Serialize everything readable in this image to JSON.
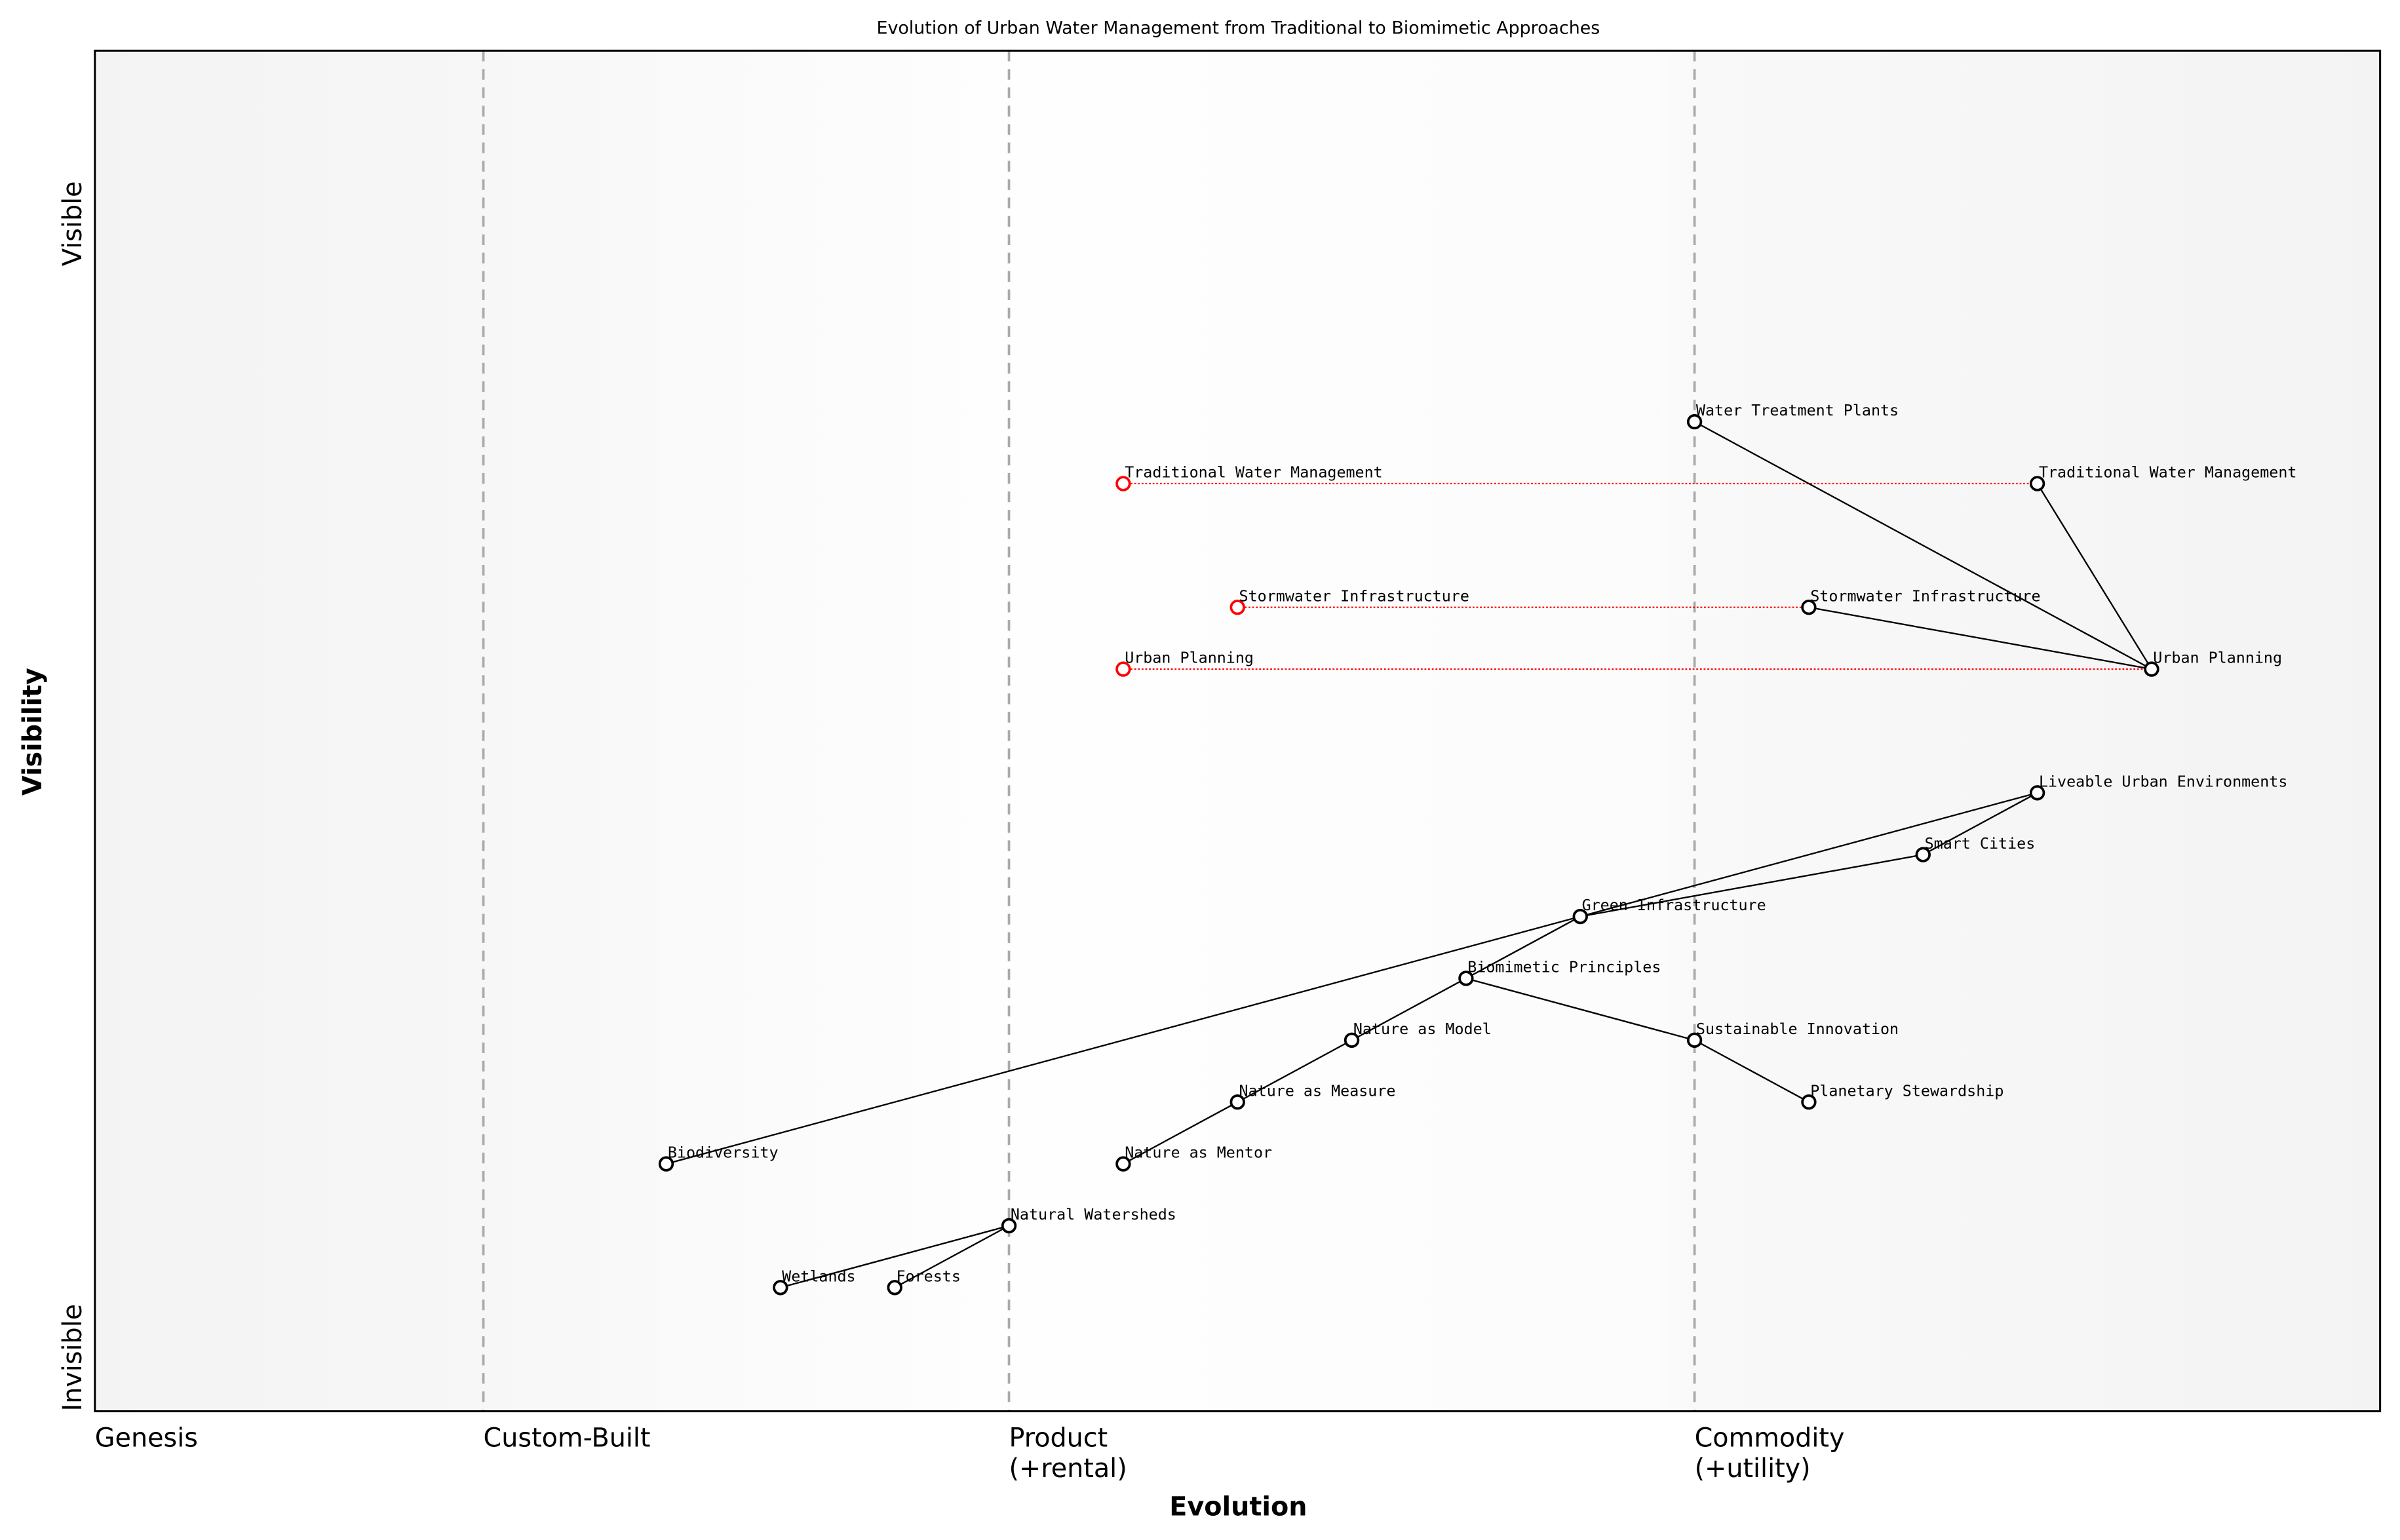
{
  "chart_data": {
    "type": "scatter",
    "subtype": "wardley-map",
    "title": "Evolution of Urban Water Management from Traditional to Biomimetic Approaches",
    "xlabel": "Evolution",
    "ylabel": "Visibility",
    "xlim": [
      0,
      1
    ],
    "ylim": [
      0,
      1.1
    ],
    "grid": false,
    "x_stages": [
      {
        "label": "Genesis",
        "at": 0
      },
      {
        "label": "Custom-Built",
        "at": 0.17
      },
      {
        "label": "Product\n(+rental)",
        "at": 0.4
      },
      {
        "label": "Commodity\n(+utility)",
        "at": 0.7
      }
    ],
    "y_labels": {
      "top": "Visible",
      "bottom": "Invisible"
    },
    "colors": {
      "node": "#000000",
      "old_node": "#ff0000",
      "evolve_line": "#ff0000",
      "stage_line": "#aaaaaa"
    },
    "components": [
      {
        "name": "Water Treatment Plants",
        "evolution": 0.7,
        "visibility": 0.8
      },
      {
        "name": "Traditional Water Management",
        "evolution": 0.85,
        "visibility": 0.75
      },
      {
        "name": "Stormwater Infrastructure",
        "evolution": 0.75,
        "visibility": 0.65
      },
      {
        "name": "Urban Planning",
        "evolution": 0.9,
        "visibility": 0.6
      },
      {
        "name": "Liveable Urban Environments",
        "evolution": 0.85,
        "visibility": 0.5
      },
      {
        "name": "Smart Cities",
        "evolution": 0.8,
        "visibility": 0.45
      },
      {
        "name": "Green Infrastructure",
        "evolution": 0.65,
        "visibility": 0.4
      },
      {
        "name": "Biomimetic Principles",
        "evolution": 0.6,
        "visibility": 0.35
      },
      {
        "name": "Nature as Model",
        "evolution": 0.55,
        "visibility": 0.3
      },
      {
        "name": "Sustainable Innovation",
        "evolution": 0.7,
        "visibility": 0.3
      },
      {
        "name": "Nature as Measure",
        "evolution": 0.5,
        "visibility": 0.25
      },
      {
        "name": "Planetary Stewardship",
        "evolution": 0.75,
        "visibility": 0.25
      },
      {
        "name": "Nature as Mentor",
        "evolution": 0.45,
        "visibility": 0.2
      },
      {
        "name": "Biodiversity",
        "evolution": 0.25,
        "visibility": 0.2
      },
      {
        "name": "Natural Watersheds",
        "evolution": 0.4,
        "visibility": 0.15
      },
      {
        "name": "Wetlands",
        "evolution": 0.3,
        "visibility": 0.1
      },
      {
        "name": "Forests",
        "evolution": 0.35,
        "visibility": 0.1
      }
    ],
    "links": [
      [
        "Water Treatment Plants",
        "Urban Planning"
      ],
      [
        "Traditional Water Management",
        "Urban Planning"
      ],
      [
        "Stormwater Infrastructure",
        "Urban Planning"
      ],
      [
        "Liveable Urban Environments",
        "Smart Cities"
      ],
      [
        "Liveable Urban Environments",
        "Biodiversity"
      ],
      [
        "Smart Cities",
        "Green Infrastructure"
      ],
      [
        "Green Infrastructure",
        "Biomimetic Principles"
      ],
      [
        "Biomimetic Principles",
        "Nature as Model"
      ],
      [
        "Nature as Model",
        "Nature as Measure"
      ],
      [
        "Nature as Measure",
        "Nature as Mentor"
      ],
      [
        "Biomimetic Principles",
        "Sustainable Innovation"
      ],
      [
        "Sustainable Innovation",
        "Planetary Stewardship"
      ],
      [
        "Natural Watersheds",
        "Wetlands"
      ],
      [
        "Natural Watersheds",
        "Forests"
      ]
    ],
    "evolutions": [
      {
        "name": "Traditional Water Management",
        "from": 0.45,
        "to": 0.85,
        "visibility": 0.75
      },
      {
        "name": "Stormwater Infrastructure",
        "from": 0.5,
        "to": 0.75,
        "visibility": 0.65
      },
      {
        "name": "Urban Planning",
        "from": 0.45,
        "to": 0.9,
        "visibility": 0.6
      }
    ]
  }
}
